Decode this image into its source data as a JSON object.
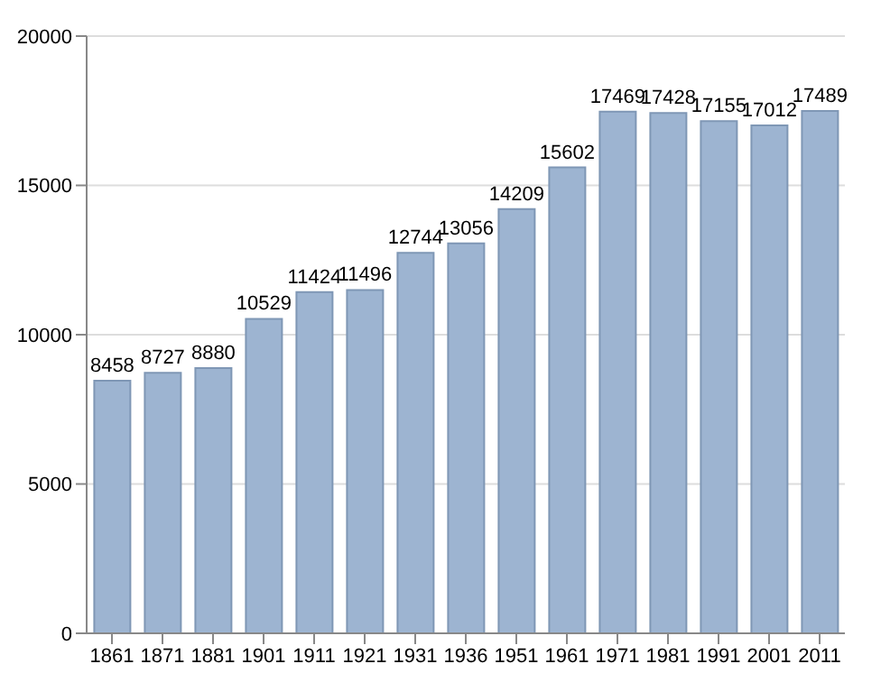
{
  "chart_data": {
    "type": "bar",
    "categories": [
      "1861",
      "1871",
      "1881",
      "1901",
      "1911",
      "1921",
      "1931",
      "1936",
      "1951",
      "1961",
      "1971",
      "1981",
      "1991",
      "2001",
      "2011"
    ],
    "values": [
      8458,
      8727,
      8880,
      10529,
      11424,
      11496,
      12744,
      13056,
      14209,
      15602,
      17469,
      17428,
      17155,
      17012,
      17489
    ],
    "color": "#9db4d1",
    "ylim": [
      0,
      20000
    ],
    "yticks": [
      0,
      5000,
      10000,
      15000,
      20000
    ],
    "grid": "y",
    "data_labels": true
  }
}
